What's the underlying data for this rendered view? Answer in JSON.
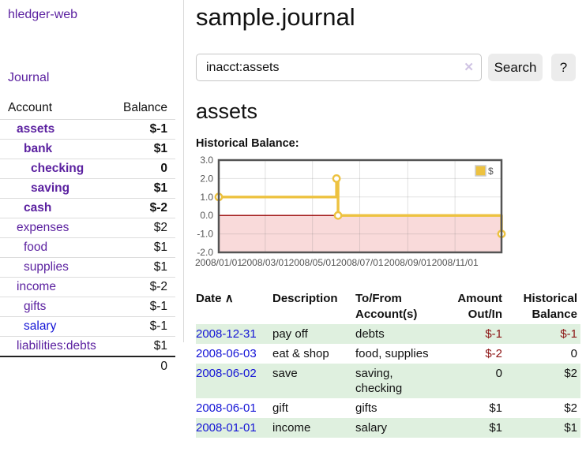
{
  "app": {
    "brand": "hledger-web",
    "nav_journal": "Journal"
  },
  "sidebar": {
    "table": {
      "account_header": "Account",
      "balance_header": "Balance"
    },
    "accounts": [
      {
        "name": "assets",
        "depth": 1,
        "bold": true,
        "balance": "$-1",
        "balance_class": "neg"
      },
      {
        "name": "bank",
        "depth": 2,
        "bold": true,
        "balance": "$1",
        "balance_class": ""
      },
      {
        "name": "checking",
        "depth": 3,
        "bold": true,
        "balance": "0",
        "balance_class": ""
      },
      {
        "name": "saving",
        "depth": 3,
        "bold": true,
        "balance": "$1",
        "balance_class": ""
      },
      {
        "name": "cash",
        "depth": 2,
        "bold": true,
        "balance": "$-2",
        "balance_class": "neg"
      },
      {
        "name": "expenses",
        "depth": 1,
        "bold": false,
        "balance": "$2",
        "balance_class": ""
      },
      {
        "name": "food",
        "depth": 2,
        "bold": false,
        "balance": "$1",
        "balance_class": ""
      },
      {
        "name": "supplies",
        "depth": 2,
        "bold": false,
        "balance": "$1",
        "balance_class": ""
      },
      {
        "name": "income",
        "depth": 1,
        "bold": false,
        "balance": "$-2",
        "balance_class": "rose"
      },
      {
        "name": "gifts",
        "depth": 2,
        "bold": false,
        "balance": "$-1",
        "balance_class": "rose"
      },
      {
        "name": "salary",
        "depth": 2,
        "bold": false,
        "balance": "$-1",
        "balance_class": "rose",
        "link_blue": true
      },
      {
        "name": "liabilities:debts",
        "depth": 1,
        "bold": false,
        "balance": "$1",
        "balance_class": ""
      }
    ],
    "total": "0"
  },
  "header": {
    "title": "sample.journal"
  },
  "search": {
    "value": "inacct:assets",
    "clear_icon": "✕",
    "button_label": "Search",
    "help_label": "?"
  },
  "account_page": {
    "title": "assets",
    "chart_title": "Historical Balance:"
  },
  "chart_data": {
    "type": "line",
    "title": "Historical Balance",
    "steps": true,
    "series": [
      {
        "name": "$",
        "color": "#edc240",
        "points": [
          [
            "2008-01-01",
            1
          ],
          [
            "2008-06-01",
            2
          ],
          [
            "2008-06-03",
            0
          ],
          [
            "2008-12-31",
            -1
          ]
        ]
      }
    ],
    "x_range": [
      "2008-01-01",
      "2008-12-31"
    ],
    "x_ticks": [
      "2008/01/01",
      "2008/03/01",
      "2008/05/01",
      "2008/07/01",
      "2008/09/01",
      "2008/11/01"
    ],
    "y_ticks": [
      "3.0",
      "2.0",
      "1.0",
      "0.0",
      "-1.0",
      "-2.0"
    ],
    "ylim": [
      -2,
      3
    ],
    "grid": true,
    "legend_position": "top-right",
    "negative_fill": "#f9dada",
    "zero_line_color": "#990000",
    "border_color": "#545454",
    "grid_color": "#787878"
  },
  "register": {
    "columns": [
      {
        "label": "Date",
        "sort_icon": "∧"
      },
      {
        "label": "Description"
      },
      {
        "label": "To/From\nAccount(s)"
      },
      {
        "label": "Amount\nOut/In"
      },
      {
        "label": "Historical\nBalance"
      }
    ],
    "rows": [
      {
        "date": "2008-12-31",
        "description": "pay off",
        "accounts": "debts",
        "amount": "$-1",
        "amount_class": "neg",
        "balance": "$-1",
        "balance_class": "neg",
        "green": true
      },
      {
        "date": "2008-06-03",
        "description": "eat & shop",
        "accounts": "food, supplies",
        "amount": "$-2",
        "amount_class": "neg",
        "balance": "0",
        "balance_class": "",
        "green": false
      },
      {
        "date": "2008-06-02",
        "description": "save",
        "accounts": "saving, checking",
        "amount": "0",
        "amount_class": "",
        "balance": "$2",
        "balance_class": "",
        "green": true
      },
      {
        "date": "2008-06-01",
        "description": "gift",
        "accounts": "gifts",
        "amount": "$1",
        "amount_class": "",
        "balance": "$2",
        "balance_class": "",
        "green": false
      },
      {
        "date": "2008-01-01",
        "description": "income",
        "accounts": "salary",
        "amount": "$1",
        "amount_class": "",
        "balance": "$1",
        "balance_class": "",
        "green": true
      }
    ]
  }
}
